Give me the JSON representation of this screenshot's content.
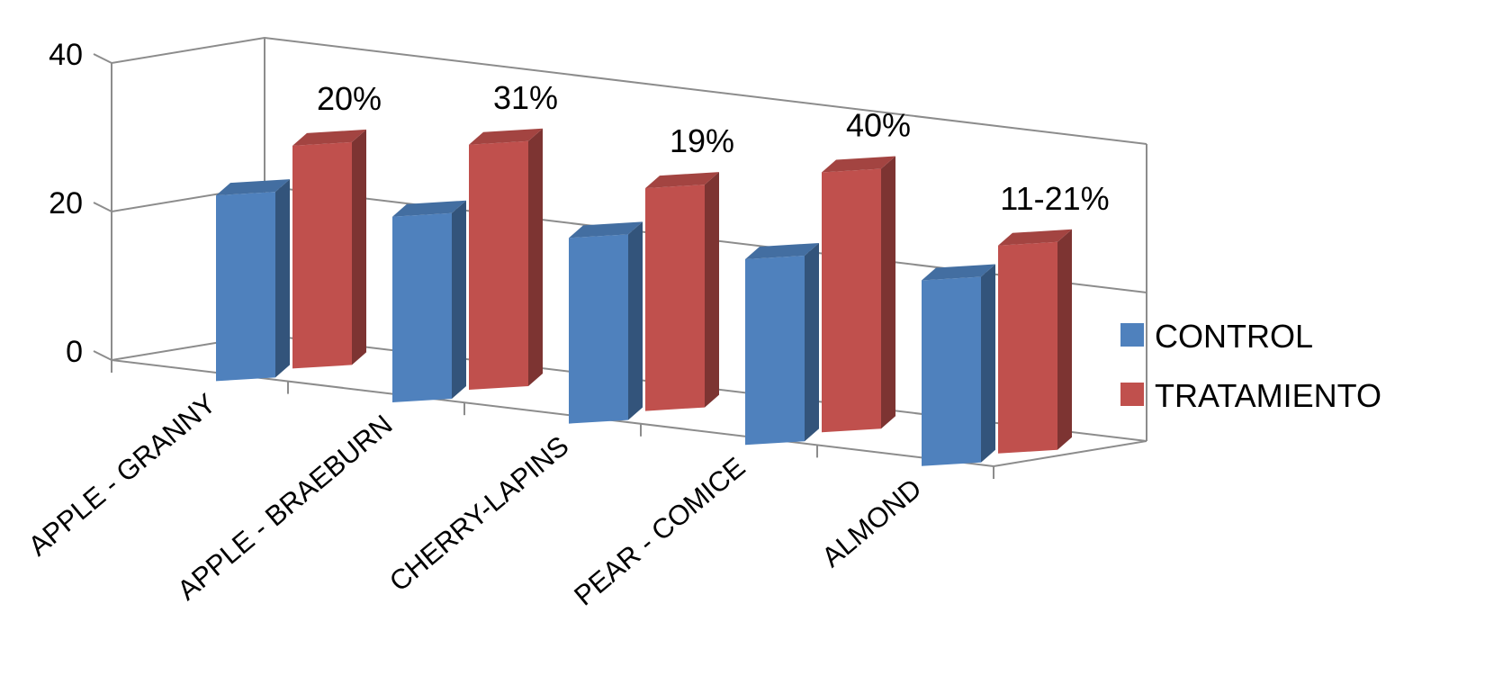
{
  "chart_data": {
    "type": "bar",
    "style": "3d-clustered-column",
    "categories": [
      "APPLE - GRANNY",
      "APPLE - BRAEBURN",
      "CHERRY-LAPINS",
      "PEAR - COMICE",
      "ALMOND"
    ],
    "series": [
      {
        "name": "CONTROL",
        "color": "#4F81BD",
        "values": [
          25,
          25,
          25,
          25,
          25
        ]
      },
      {
        "name": "TRATAMIENTO",
        "color": "#C0504D",
        "values": [
          30,
          33,
          30,
          35,
          28
        ]
      }
    ],
    "annotations": [
      "20%",
      "31%",
      "19%",
      "40%",
      "11-21%"
    ],
    "yticks": [
      0,
      20,
      40
    ],
    "ylim": [
      0,
      40
    ],
    "grid": true,
    "legend_position": "right",
    "title": "",
    "xlabel": "",
    "ylabel": ""
  }
}
